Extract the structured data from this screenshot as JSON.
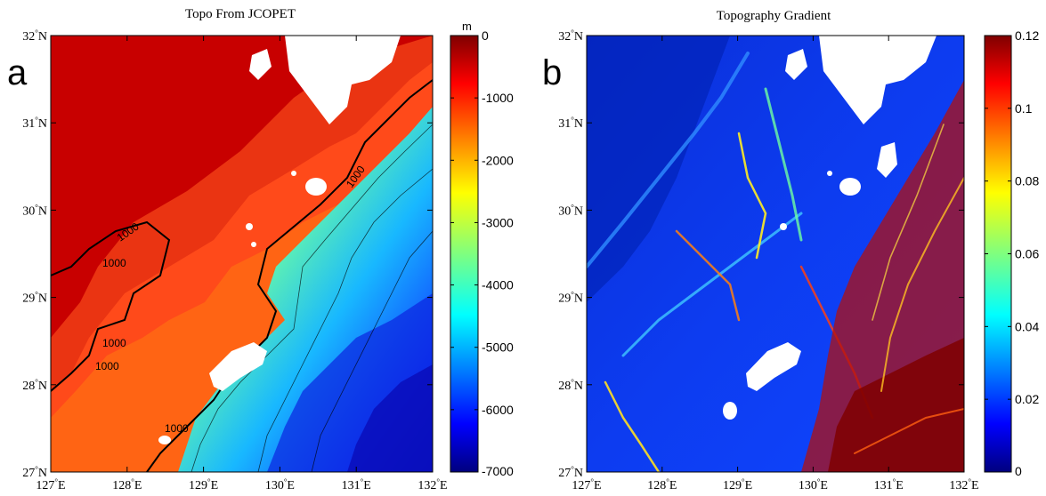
{
  "chart_data": [
    {
      "type": "heatmap",
      "panel_label": "a",
      "title": "Topo From JCOPET",
      "xlabel": "",
      "ylabel": "",
      "x_ticks": [
        "127°E",
        "128°E",
        "129°E",
        "130°E",
        "131°E",
        "132°E"
      ],
      "y_ticks": [
        "27°N",
        "28°N",
        "29°N",
        "30°N",
        "31°N",
        "32°N"
      ],
      "xlim": [
        127,
        132
      ],
      "ylim": [
        27,
        32
      ],
      "colorbar": {
        "unit": "m",
        "range": [
          -7000,
          0
        ],
        "ticks": [
          "0",
          "-1000",
          "-2000",
          "-3000",
          "-4000",
          "-5000",
          "-6000",
          "-7000"
        ],
        "colormap": "jet"
      },
      "contour_labels": [
        "1000",
        "1000",
        "1000",
        "1000",
        "1000",
        "1000"
      ],
      "grid": false,
      "legend": "colorbar-right"
    },
    {
      "type": "heatmap",
      "panel_label": "b",
      "title": "Topography Gradient",
      "xlabel": "",
      "ylabel": "",
      "x_ticks": [
        "127°E",
        "128°E",
        "129°E",
        "130°E",
        "131°E",
        "132°E"
      ],
      "y_ticks": [
        "27°N",
        "28°N",
        "29°N",
        "30°N",
        "31°N",
        "32°N"
      ],
      "xlim": [
        127,
        132
      ],
      "ylim": [
        27,
        32
      ],
      "colorbar": {
        "unit": "",
        "range": [
          0,
          0.12
        ],
        "ticks": [
          "0.12",
          "0.1",
          "0.08",
          "0.06",
          "0.04",
          "0.02",
          "0"
        ],
        "colormap": "jet"
      },
      "grid": false,
      "legend": "colorbar-right"
    }
  ]
}
